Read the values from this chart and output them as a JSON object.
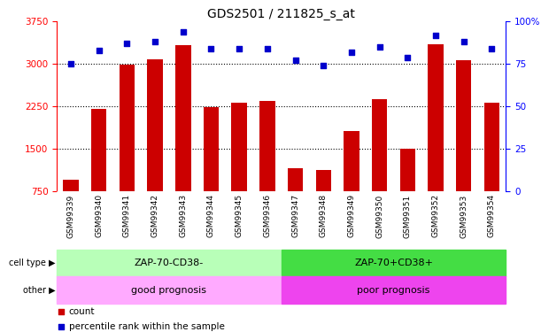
{
  "title": "GDS2501 / 211825_s_at",
  "samples": [
    "GSM99339",
    "GSM99340",
    "GSM99341",
    "GSM99342",
    "GSM99343",
    "GSM99344",
    "GSM99345",
    "GSM99346",
    "GSM99347",
    "GSM99348",
    "GSM99349",
    "GSM99350",
    "GSM99351",
    "GSM99352",
    "GSM99353",
    "GSM99354"
  ],
  "counts": [
    950,
    2200,
    2990,
    3080,
    3340,
    2230,
    2320,
    2350,
    1160,
    1120,
    1820,
    2380,
    1500,
    3350,
    3060,
    2320
  ],
  "percentile": [
    75,
    83,
    87,
    88,
    94,
    84,
    84,
    84,
    77,
    74,
    82,
    85,
    79,
    92,
    88,
    84
  ],
  "bar_color": "#cc0000",
  "dot_color": "#0000cc",
  "ylim_left": [
    750,
    3750
  ],
  "ylim_right": [
    0,
    100
  ],
  "yticks_left": [
    750,
    1500,
    2250,
    3000,
    3750
  ],
  "yticks_right": [
    0,
    25,
    50,
    75,
    100
  ],
  "grid_values": [
    1500,
    2250,
    3000
  ],
  "cell_type_labels": [
    "ZAP-70-CD38-",
    "ZAP-70+CD38+"
  ],
  "other_labels": [
    "good prognosis",
    "poor prognosis"
  ],
  "cell_type_colors": [
    "#b8ffb8",
    "#44dd44"
  ],
  "other_colors": [
    "#ffaaff",
    "#ee44ee"
  ],
  "split_index": 8,
  "legend_count_label": "count",
  "legend_pct_label": "percentile rank within the sample",
  "background_color": "#ffffff",
  "plot_bg_color": "#ffffff",
  "xtick_bg_color": "#d8d8d8",
  "bar_baseline": 750
}
